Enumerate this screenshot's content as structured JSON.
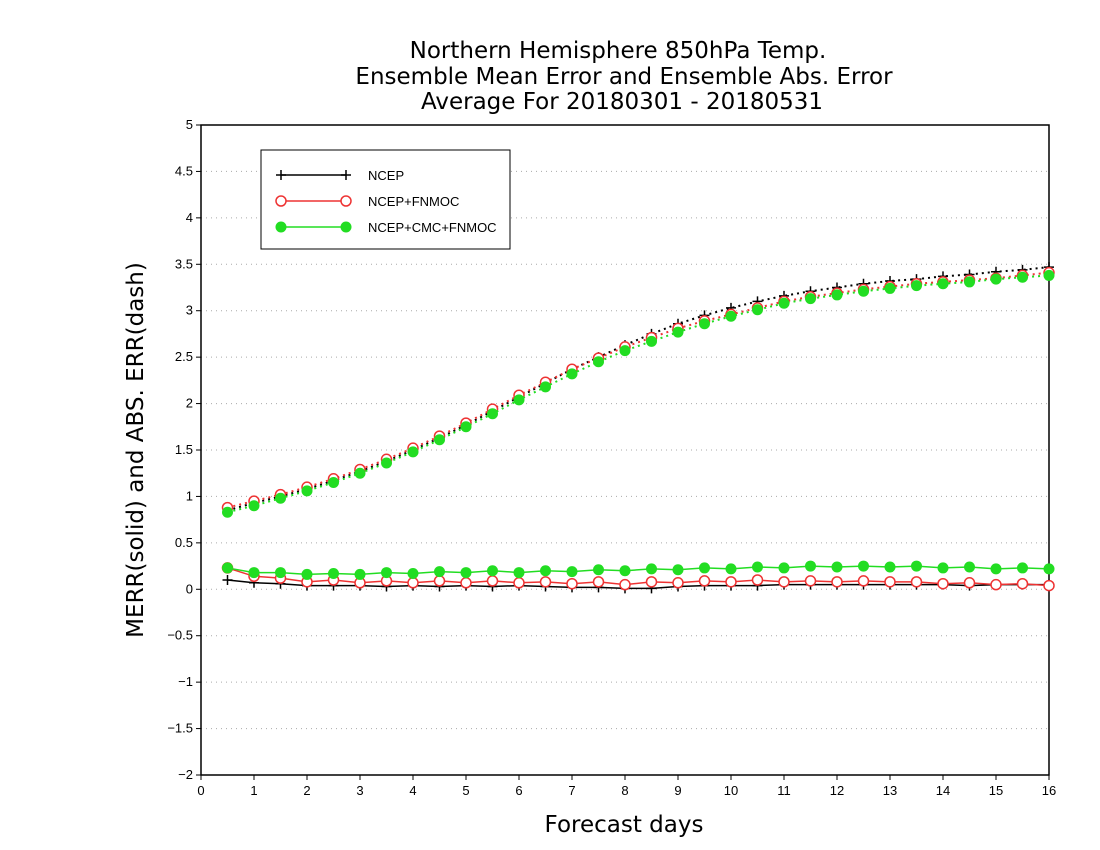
{
  "chart_data": {
    "type": "line",
    "title_lines": [
      "Northern Hemisphere 850hPa Temp.",
      "Ensemble Mean Error and Ensemble Abs. Error",
      "Average For 20180301 - 20180531"
    ],
    "xlabel": "Forecast days",
    "ylabel": "MERR(solid) and ABS. ERR(dash)",
    "xlim": [
      0,
      16
    ],
    "ylim": [
      -2,
      5
    ],
    "x_ticks": [
      "0",
      "1",
      "2",
      "3",
      "4",
      "5",
      "6",
      "7",
      "8",
      "9",
      "10",
      "11",
      "12",
      "13",
      "14",
      "15",
      "16"
    ],
    "y_ticks": [
      "−2",
      "−1.5",
      "−1",
      "−0.5",
      "0",
      "0.5",
      "1",
      "1.5",
      "2",
      "2.5",
      "3",
      "3.5",
      "4",
      "4.5",
      "5"
    ],
    "y_tick_values": [
      -2,
      -1.5,
      -1,
      -0.5,
      0,
      0.5,
      1,
      1.5,
      2,
      2.5,
      3,
      3.5,
      4,
      4.5,
      5
    ],
    "grid": "dotted horizontal",
    "legend_position": "top-left",
    "x": [
      0.5,
      1,
      1.5,
      2,
      2.5,
      3,
      3.5,
      4,
      4.5,
      5,
      5.5,
      6,
      6.5,
      7,
      7.5,
      8,
      8.5,
      9,
      9.5,
      10,
      10.5,
      11,
      11.5,
      12,
      12.5,
      13,
      13.5,
      14,
      14.5,
      15,
      15.5,
      16
    ],
    "series": [
      {
        "name": "NCEP",
        "color": "#000000",
        "marker": "plus",
        "merr": [
          0.1,
          0.07,
          0.06,
          0.04,
          0.04,
          0.04,
          0.03,
          0.04,
          0.03,
          0.04,
          0.03,
          0.04,
          0.03,
          0.02,
          0.02,
          0.01,
          0.01,
          0.03,
          0.04,
          0.04,
          0.04,
          0.05,
          0.05,
          0.05,
          0.05,
          0.05,
          0.05,
          0.05,
          0.04,
          0.05,
          0.05,
          0.05
        ],
        "abserr": [
          0.85,
          0.93,
          1.0,
          1.08,
          1.17,
          1.27,
          1.38,
          1.5,
          1.63,
          1.77,
          1.92,
          2.07,
          2.22,
          2.37,
          2.5,
          2.63,
          2.75,
          2.86,
          2.95,
          3.03,
          3.1,
          3.16,
          3.21,
          3.25,
          3.29,
          3.32,
          3.34,
          3.37,
          3.39,
          3.42,
          3.44,
          3.47
        ]
      },
      {
        "name": "NCEP+FNMOC",
        "color": "#ee3333",
        "marker": "open-circle",
        "merr": [
          0.23,
          0.14,
          0.12,
          0.08,
          0.1,
          0.07,
          0.09,
          0.07,
          0.09,
          0.07,
          0.09,
          0.07,
          0.08,
          0.06,
          0.08,
          0.05,
          0.08,
          0.07,
          0.09,
          0.08,
          0.1,
          0.08,
          0.09,
          0.08,
          0.09,
          0.08,
          0.08,
          0.06,
          0.07,
          0.05,
          0.06,
          0.04
        ],
        "abserr": [
          0.88,
          0.95,
          1.02,
          1.1,
          1.19,
          1.29,
          1.4,
          1.52,
          1.65,
          1.79,
          1.94,
          2.09,
          2.23,
          2.37,
          2.49,
          2.61,
          2.71,
          2.81,
          2.89,
          2.96,
          3.03,
          3.1,
          3.15,
          3.19,
          3.23,
          3.26,
          3.29,
          3.31,
          3.33,
          3.35,
          3.38,
          3.41
        ]
      },
      {
        "name": "NCEP+CMC+FNMOC",
        "color": "#22dd22",
        "marker": "filled-circle",
        "merr": [
          0.23,
          0.18,
          0.18,
          0.16,
          0.17,
          0.16,
          0.18,
          0.17,
          0.19,
          0.18,
          0.2,
          0.18,
          0.2,
          0.19,
          0.21,
          0.2,
          0.22,
          0.21,
          0.23,
          0.22,
          0.24,
          0.23,
          0.25,
          0.24,
          0.25,
          0.24,
          0.25,
          0.23,
          0.24,
          0.22,
          0.23,
          0.22
        ],
        "abserr": [
          0.83,
          0.9,
          0.98,
          1.06,
          1.15,
          1.25,
          1.36,
          1.48,
          1.61,
          1.75,
          1.89,
          2.04,
          2.18,
          2.32,
          2.45,
          2.57,
          2.67,
          2.77,
          2.86,
          2.94,
          3.01,
          3.08,
          3.13,
          3.17,
          3.21,
          3.24,
          3.27,
          3.29,
          3.31,
          3.34,
          3.36,
          3.38
        ]
      }
    ]
  }
}
